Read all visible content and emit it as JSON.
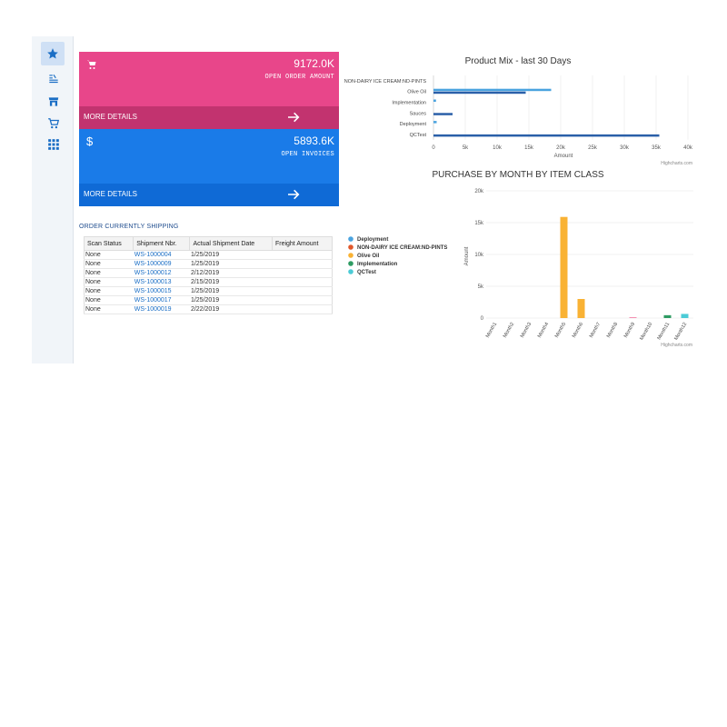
{
  "sidebar": {
    "items": [
      {
        "icon": "star-icon",
        "active": true
      },
      {
        "icon": "list-icon",
        "active": false
      },
      {
        "icon": "store-icon",
        "active": false
      },
      {
        "icon": "cart-icon",
        "active": false
      },
      {
        "icon": "apps-grid-icon",
        "active": false
      }
    ]
  },
  "tiles": [
    {
      "icon": "cart-icon",
      "value": "9172.0K",
      "caption": "OPEN ORDER AMOUNT",
      "more": "MORE DETAILS",
      "color": "#e8468a",
      "bottom_color": "#c2336f"
    },
    {
      "icon": "dollar-icon",
      "icon_text": "$",
      "value": "5893.6K",
      "caption": "OPEN INVOICES",
      "more": "MORE DETAILS",
      "color": "#1a7be8",
      "bottom_color": "#0f6ad6"
    }
  ],
  "orders": {
    "title": "ORDER CURRENTLY SHIPPING",
    "columns": [
      "Scan Status",
      "Shipment Nbr.",
      "Actual Shipment Date",
      "Freight Amount"
    ],
    "rows": [
      [
        "None",
        "WS-1000004",
        "1/25/2019",
        ""
      ],
      [
        "None",
        "WS-1000009",
        "1/25/2019",
        ""
      ],
      [
        "None",
        "WS-1000012",
        "2/12/2019",
        ""
      ],
      [
        "None",
        "WS-1000013",
        "2/15/2019",
        ""
      ],
      [
        "None",
        "WS-1000015",
        "1/25/2019",
        ""
      ],
      [
        "None",
        "WS-1000017",
        "1/25/2019",
        ""
      ],
      [
        "None",
        "WS-1000019",
        "2/22/2019",
        ""
      ]
    ]
  },
  "chart_data": [
    {
      "type": "bar",
      "orientation": "horizontal",
      "title": "Product Mix - last 30 Days",
      "xlabel": "Amount",
      "credits": "Highcharts.com",
      "categories": [
        "NON-DAIRY ICE CREAM:ND-PINTS",
        "Olive Oil",
        "Implementation",
        "Sauces",
        "Deployment",
        "QCTest"
      ],
      "xlim": [
        0,
        40000
      ],
      "ticks": [
        "0",
        "5k",
        "10k",
        "15k",
        "20k",
        "25k",
        "30k",
        "35k",
        "40k"
      ],
      "series": [
        {
          "color": "#4aa3df",
          "values": [
            0,
            18500,
            400,
            0,
            500,
            0
          ]
        },
        {
          "color": "#2a5fa8",
          "values": [
            0,
            14500,
            0,
            3000,
            0,
            35500
          ]
        }
      ],
      "grid": true
    },
    {
      "type": "bar",
      "title": "PURCHASE BY MONTH BY ITEM CLASS",
      "ylabel": "Amount",
      "credits": "Highcharts.com",
      "categories": [
        "Month1",
        "Month2",
        "Month3",
        "Month4",
        "Month5",
        "Month6",
        "Month7",
        "Month8",
        "Month9",
        "Month10",
        "Month11",
        "Month12"
      ],
      "ylim": [
        0,
        20000
      ],
      "yticks": [
        "0",
        "5k",
        "10k",
        "15k",
        "20k"
      ],
      "legend_position": "left",
      "series": [
        {
          "name": "Deployment",
          "color": "#4aa3df",
          "values": [
            0,
            0,
            0,
            0,
            0,
            0,
            0,
            0,
            0,
            0,
            0,
            0
          ]
        },
        {
          "name": "NON-DAIRY ICE CREAM:ND-PINTS",
          "color": "#e0582c",
          "values": [
            0,
            0,
            0,
            0,
            0,
            0,
            0,
            0,
            0,
            0,
            0,
            0
          ]
        },
        {
          "name": "Olive Oil",
          "color": "#f9b234",
          "values": [
            0,
            0,
            0,
            0,
            15900,
            3000,
            0,
            0,
            100,
            0,
            0,
            0
          ]
        },
        {
          "name": "Implementation",
          "color": "#2e9b62",
          "values": [
            0,
            0,
            0,
            0,
            0,
            0,
            0,
            0,
            0,
            0,
            450,
            0
          ]
        },
        {
          "name": "QCTest",
          "color": "#4ccbd6",
          "values": [
            0,
            0,
            0,
            0,
            0,
            0,
            0,
            0,
            0,
            0,
            0,
            650
          ]
        }
      ],
      "extra_marks": [
        {
          "month": "Month9",
          "color": "#f48fb1",
          "value": 100
        }
      ],
      "grid": true
    }
  ]
}
